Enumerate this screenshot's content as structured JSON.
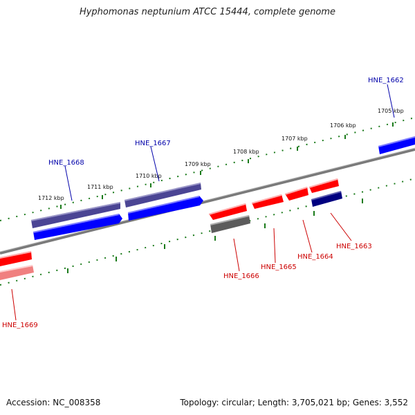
{
  "title": "Hyphomonas neptunium ATCC 15444, complete genome",
  "footer": {
    "accession": "Accession: NC_008358",
    "summary": "Topology: circular; Length: 3,705,021 bp; Genes: 3,552"
  },
  "colors": {
    "forward_gene": "#0000ff",
    "forward_other": "#4b4594",
    "reverse_gene": "#ff0000",
    "reverse_pseudo": "#f08080",
    "reverse_other": "#5c5c5c",
    "reverse_dark": "#000080",
    "forward_label": "#0000aa",
    "reverse_label": "#cc0000",
    "scale_ticks": "#1a7a1a",
    "backbone": "#808080"
  },
  "scale_labels": [
    "1712 kbp",
    "1711 kbp",
    "1710 kbp",
    "1709 kbp",
    "1708 kbp",
    "1707 kbp",
    "1706 kbp",
    "1705 kbp"
  ],
  "forward_labels": [
    "HNE_1668",
    "HNE_1667",
    "HNE_1662"
  ],
  "reverse_labels": [
    "HNE_1669",
    "HNE_1666",
    "HNE_1665",
    "HNE_1664",
    "HNE_1663"
  ]
}
